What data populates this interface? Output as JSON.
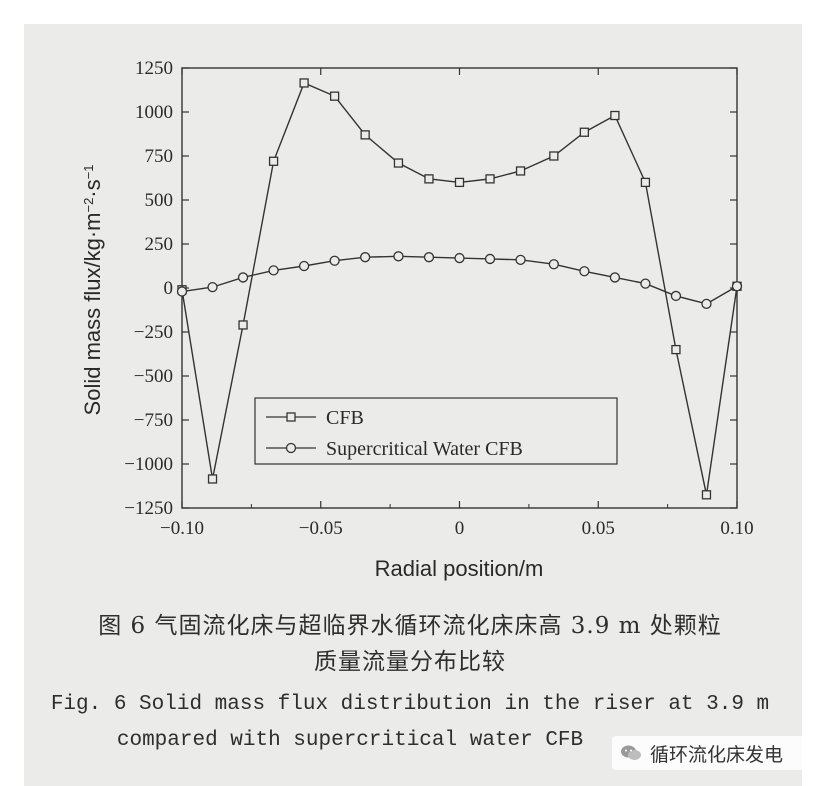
{
  "chart_data": {
    "type": "line",
    "xlabel": "Radial position/m",
    "ylabel": "Solid mass flux/kg·m",
    "ylabel_sup1": "−2",
    "ylabel_mid": "·s",
    "ylabel_sup2": "−1",
    "xlim": [
      -0.1,
      0.1
    ],
    "ylim": [
      -1250,
      1250
    ],
    "xticks": [
      "−0.10",
      "−0.05",
      "0",
      "0.05",
      "0.10"
    ],
    "xtick_values": [
      -0.1,
      -0.05,
      0,
      0.05,
      0.1
    ],
    "yticks": [
      "1250",
      "1000",
      "750",
      "500",
      "250",
      "0",
      "−250",
      "−500",
      "−750",
      "−1000",
      "−1250"
    ],
    "ytick_values": [
      1250,
      1000,
      750,
      500,
      250,
      0,
      -250,
      -500,
      -750,
      -1000,
      -1250
    ],
    "legend_position": "bottom-center",
    "series": [
      {
        "name": "CFB",
        "marker": "square",
        "x": [
          -0.1,
          -0.089,
          -0.078,
          -0.067,
          -0.056,
          -0.045,
          -0.034,
          -0.022,
          -0.011,
          0.0,
          0.011,
          0.022,
          0.034,
          0.045,
          0.056,
          0.067,
          0.078,
          0.089,
          0.1
        ],
        "y": [
          -10,
          -1085,
          -210,
          720,
          1165,
          1090,
          870,
          710,
          620,
          600,
          620,
          665,
          750,
          885,
          980,
          600,
          -350,
          -1175,
          10
        ]
      },
      {
        "name": "Supercritical Water CFB",
        "marker": "circle",
        "x": [
          -0.1,
          -0.089,
          -0.078,
          -0.067,
          -0.056,
          -0.045,
          -0.034,
          -0.022,
          -0.011,
          0.0,
          0.011,
          0.022,
          0.034,
          0.045,
          0.056,
          0.067,
          0.078,
          0.089,
          0.1
        ],
        "y": [
          -20,
          5,
          60,
          100,
          125,
          155,
          175,
          180,
          175,
          170,
          165,
          160,
          135,
          95,
          60,
          25,
          -45,
          -90,
          10
        ]
      }
    ]
  },
  "caption": {
    "cn_line1": "图 6  气固流化床与超临界水循环流化床床高 3.9 m 处颗粒",
    "cn_line2": "质量流量分布比较",
    "en_line1": "Fig. 6  Solid mass flux distribution in the riser at 3.9 m",
    "en_line2": "compared with supercritical water CFB"
  },
  "watermark": {
    "text": "循环流化床发电",
    "icon": "wechat-icon"
  }
}
